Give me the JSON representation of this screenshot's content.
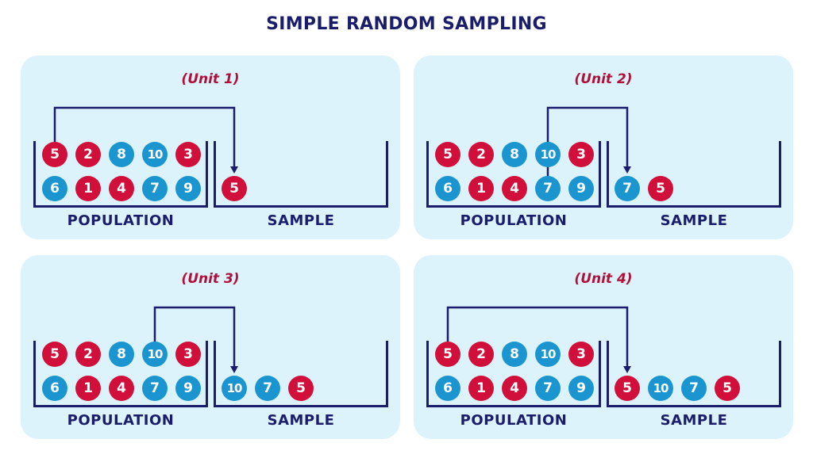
{
  "title": "SIMPLE RANDOM SAMPLING",
  "colors": {
    "red": "#d0103a",
    "blue": "#1a95cf",
    "navy": "#1a1d6b",
    "panel": "#ddf3fc",
    "unit_label": "#b0103a"
  },
  "panels": [
    {
      "label": "(Unit 1)",
      "population_caption": "POPULATION",
      "sample_caption": "SAMPLE",
      "population_row1": [
        {
          "n": "5",
          "c": "red"
        },
        {
          "n": "2",
          "c": "red"
        },
        {
          "n": "8",
          "c": "blue"
        },
        {
          "n": "10",
          "c": "blue"
        },
        {
          "n": "3",
          "c": "red"
        }
      ],
      "population_row2": [
        {
          "n": "6",
          "c": "blue"
        },
        {
          "n": "1",
          "c": "red"
        },
        {
          "n": "4",
          "c": "red"
        },
        {
          "n": "7",
          "c": "blue"
        },
        {
          "n": "9",
          "c": "blue"
        }
      ],
      "sample": [
        {
          "n": "5",
          "c": "red"
        }
      ],
      "picked": {
        "row": 1,
        "index": 0
      }
    },
    {
      "label": "(Unit 2)",
      "population_caption": "POPULATION",
      "sample_caption": "SAMPLE",
      "population_row1": [
        {
          "n": "5",
          "c": "red"
        },
        {
          "n": "2",
          "c": "red"
        },
        {
          "n": "8",
          "c": "blue"
        },
        {
          "n": "10",
          "c": "blue"
        },
        {
          "n": "3",
          "c": "red"
        }
      ],
      "population_row2": [
        {
          "n": "6",
          "c": "blue"
        },
        {
          "n": "1",
          "c": "red"
        },
        {
          "n": "4",
          "c": "red"
        },
        {
          "n": "7",
          "c": "blue"
        },
        {
          "n": "9",
          "c": "blue"
        }
      ],
      "sample": [
        {
          "n": "7",
          "c": "blue"
        },
        {
          "n": "5",
          "c": "red"
        }
      ],
      "picked": {
        "row": 2,
        "index": 3
      }
    },
    {
      "label": "(Unit 3)",
      "population_caption": "POPULATION",
      "sample_caption": "SAMPLE",
      "population_row1": [
        {
          "n": "5",
          "c": "red"
        },
        {
          "n": "2",
          "c": "red"
        },
        {
          "n": "8",
          "c": "blue"
        },
        {
          "n": "10",
          "c": "blue"
        },
        {
          "n": "3",
          "c": "red"
        }
      ],
      "population_row2": [
        {
          "n": "6",
          "c": "blue"
        },
        {
          "n": "1",
          "c": "red"
        },
        {
          "n": "4",
          "c": "red"
        },
        {
          "n": "7",
          "c": "blue"
        },
        {
          "n": "9",
          "c": "blue"
        }
      ],
      "sample": [
        {
          "n": "10",
          "c": "blue"
        },
        {
          "n": "7",
          "c": "blue"
        },
        {
          "n": "5",
          "c": "red"
        }
      ],
      "picked": {
        "row": 1,
        "index": 3
      }
    },
    {
      "label": "(Unit 4)",
      "population_caption": "POPULATION",
      "sample_caption": "SAMPLE",
      "population_row1": [
        {
          "n": "5",
          "c": "red"
        },
        {
          "n": "2",
          "c": "red"
        },
        {
          "n": "8",
          "c": "blue"
        },
        {
          "n": "10",
          "c": "blue"
        },
        {
          "n": "3",
          "c": "red"
        }
      ],
      "population_row2": [
        {
          "n": "6",
          "c": "blue"
        },
        {
          "n": "1",
          "c": "red"
        },
        {
          "n": "4",
          "c": "red"
        },
        {
          "n": "7",
          "c": "blue"
        },
        {
          "n": "9",
          "c": "blue"
        }
      ],
      "sample": [
        {
          "n": "5",
          "c": "red"
        },
        {
          "n": "10",
          "c": "blue"
        },
        {
          "n": "7",
          "c": "blue"
        },
        {
          "n": "5",
          "c": "red"
        }
      ],
      "picked": {
        "row": 1,
        "index": 0
      }
    }
  ]
}
